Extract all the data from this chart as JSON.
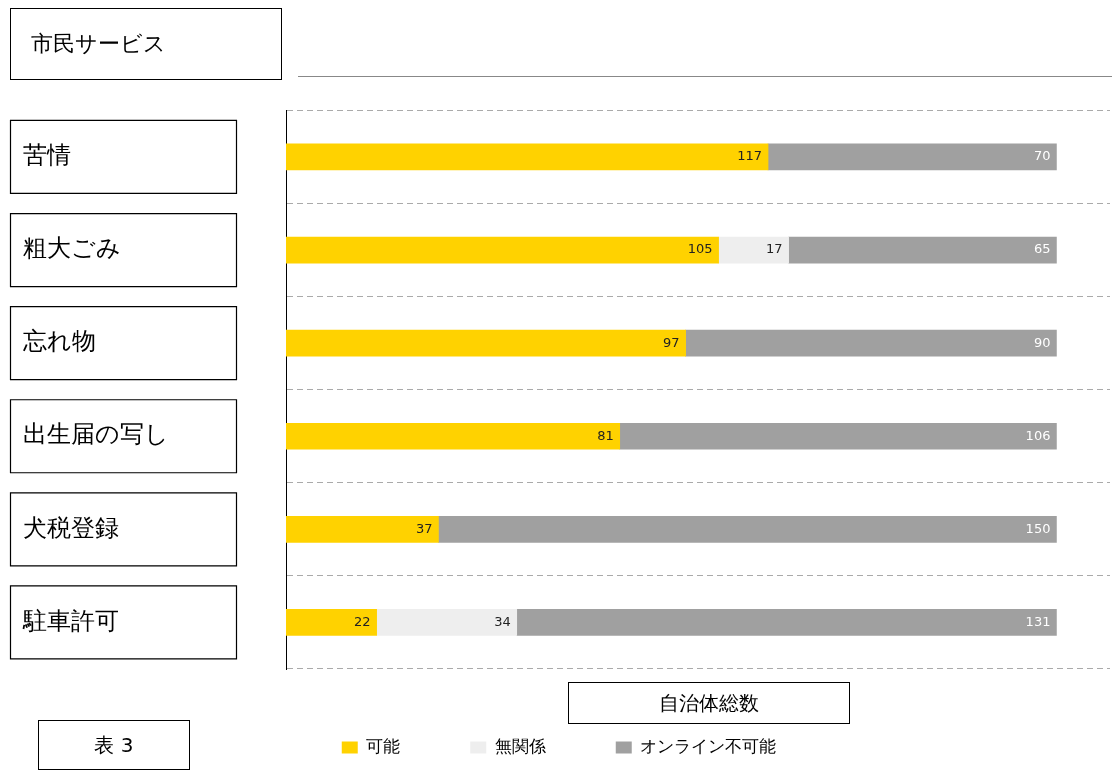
{
  "chart_data": {
    "type": "bar",
    "orientation": "horizontal",
    "stacked": true,
    "title": "市民サービス",
    "xlabel": "自治体総数",
    "categories": [
      "苦情",
      "粗大ごみ",
      "忘れ物",
      "出生届の写し",
      "犬税登録",
      "駐車許可"
    ],
    "series": [
      {
        "name": "可能",
        "color": "#ffd200",
        "values": [
          117,
          105,
          97,
          81,
          37,
          22
        ]
      },
      {
        "name": "無関係",
        "color": "#eeeeee",
        "values": [
          null,
          17,
          null,
          null,
          null,
          34
        ]
      },
      {
        "name": "オンライン不可能",
        "color": "#a0a0a0",
        "values": [
          70,
          65,
          90,
          106,
          150,
          131
        ]
      }
    ],
    "data_labels": true,
    "grid": "y",
    "legend": "bottom",
    "annotations": [
      "表 3"
    ]
  }
}
